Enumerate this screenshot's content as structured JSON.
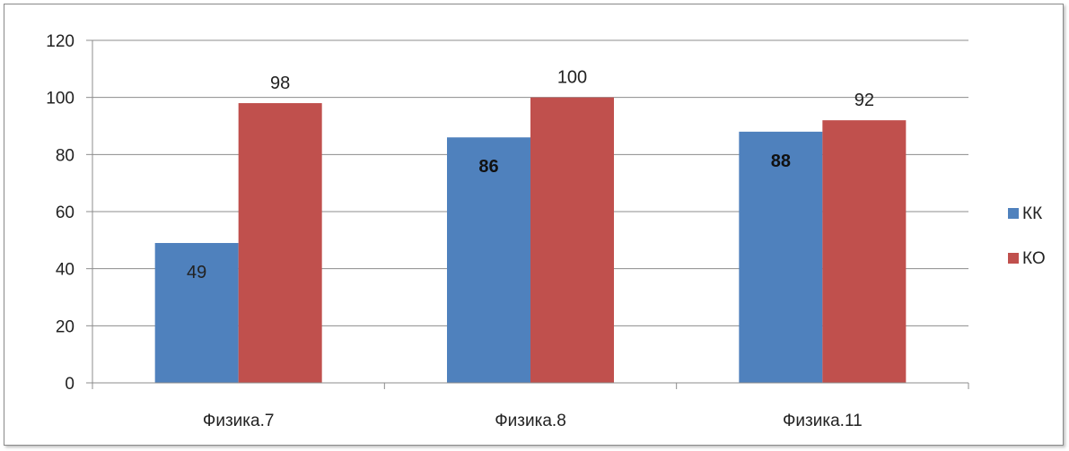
{
  "chart_data": {
    "type": "bar",
    "categories": [
      "Физика.7",
      "Физика.8",
      "Физика.11"
    ],
    "series": [
      {
        "name": "КК",
        "color": "#4F81BD",
        "values": [
          49,
          86,
          88
        ],
        "labels": [
          "49",
          "86",
          "88"
        ],
        "label_bold": [
          false,
          true,
          true
        ],
        "label_position": "inside-top"
      },
      {
        "name": "КО",
        "color": "#C0504D",
        "values": [
          98,
          100,
          92
        ],
        "labels": [
          "98",
          "100",
          "92"
        ],
        "label_bold": [
          false,
          false,
          false
        ],
        "label_position": "above"
      }
    ],
    "ylim": [
      0,
      120
    ],
    "yticks": [
      "0",
      "20",
      "40",
      "60",
      "80",
      "100",
      "120"
    ],
    "grid": true,
    "legend": "right"
  }
}
